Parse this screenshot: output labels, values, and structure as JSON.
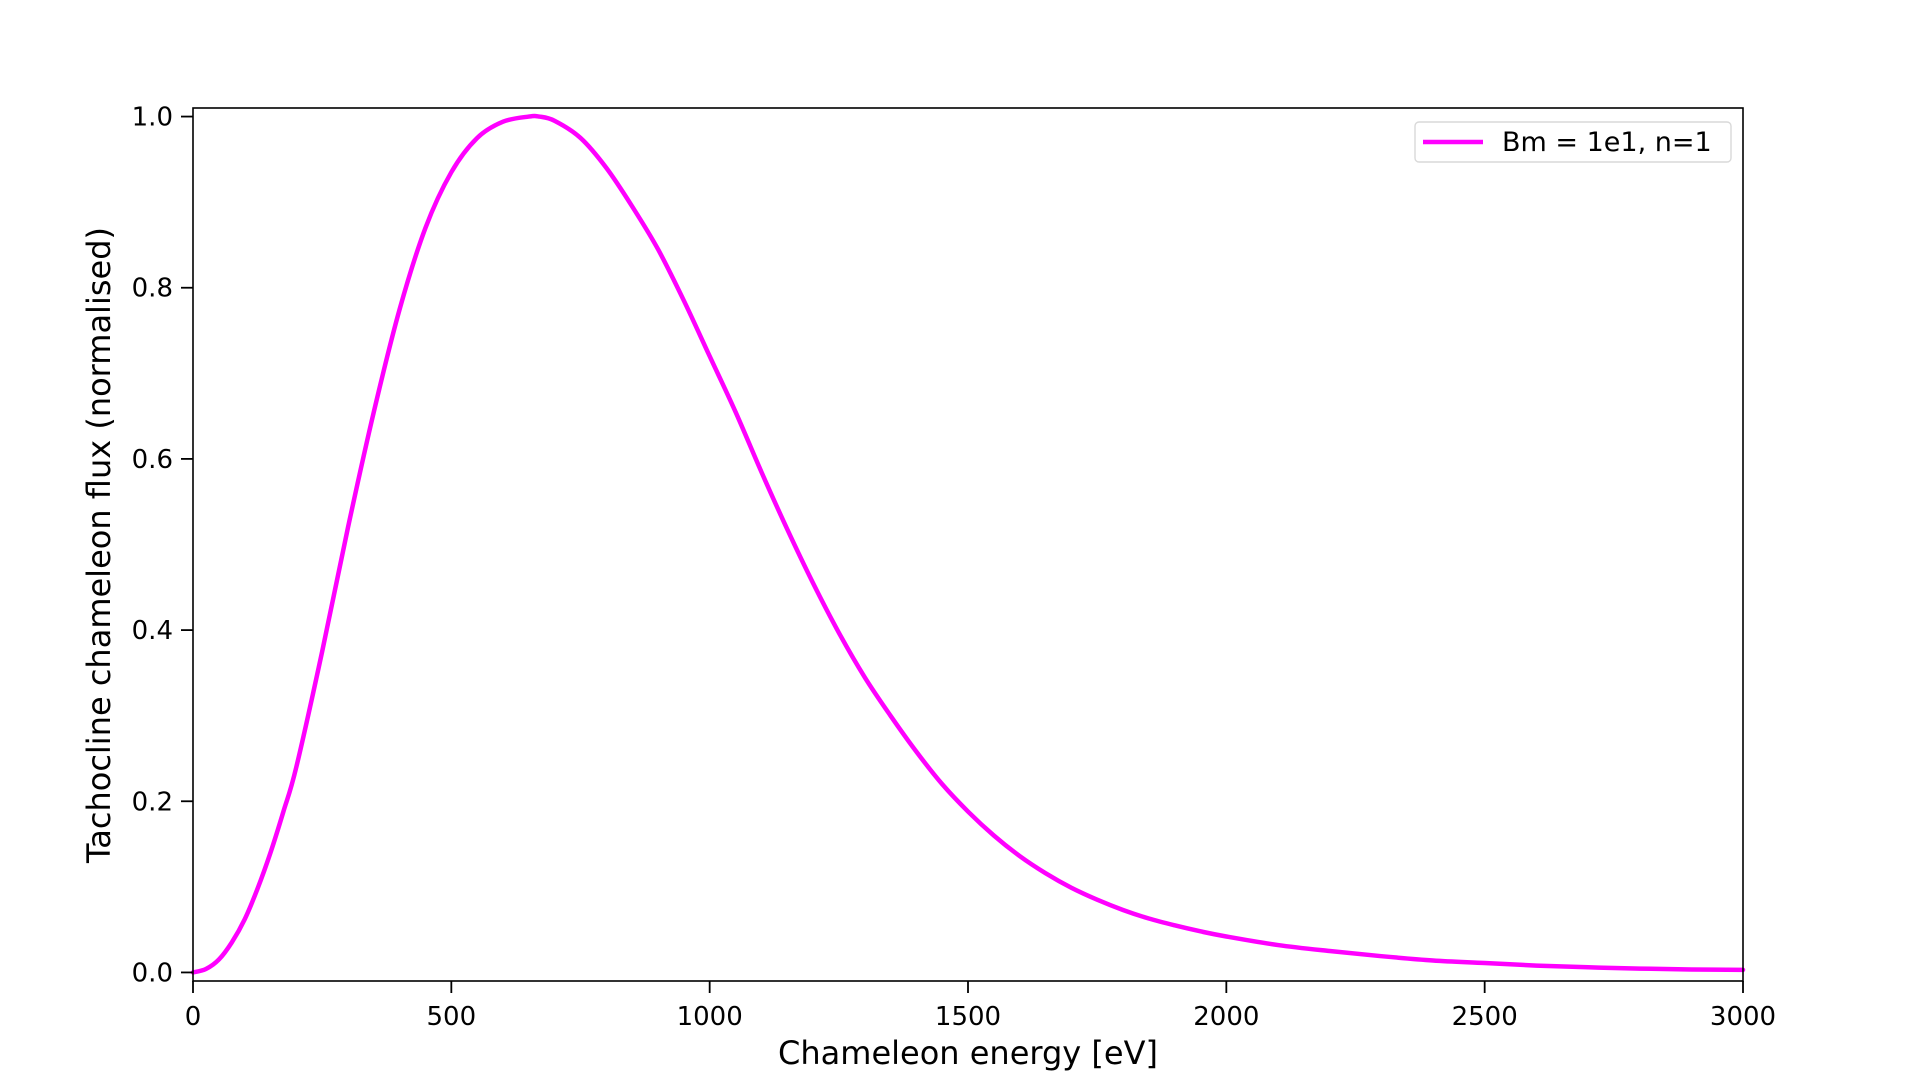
{
  "chart_data": {
    "type": "line",
    "title": "",
    "xlabel": "Chameleon energy [eV]",
    "ylabel": "Tachocline chameleon flux (normalised)",
    "xlim": [
      0,
      3000
    ],
    "ylim": [
      -0.01,
      1.01
    ],
    "grid": false,
    "legend_position": "top-right",
    "x_ticks": [
      {
        "value": 0,
        "label": "0"
      },
      {
        "value": 500,
        "label": "500"
      },
      {
        "value": 1000,
        "label": "1000"
      },
      {
        "value": 1500,
        "label": "1500"
      },
      {
        "value": 2000,
        "label": "2000"
      },
      {
        "value": 2500,
        "label": "2500"
      },
      {
        "value": 3000,
        "label": "3000"
      }
    ],
    "y_ticks": [
      {
        "value": 0.0,
        "label": "0.0"
      },
      {
        "value": 0.2,
        "label": "0.2"
      },
      {
        "value": 0.4,
        "label": "0.4"
      },
      {
        "value": 0.6,
        "label": "0.6"
      },
      {
        "value": 0.8,
        "label": "0.8"
      },
      {
        "value": 1.0,
        "label": "1.0"
      }
    ],
    "series": [
      {
        "name": "Bm = 1e1, n=1",
        "color": "#ff00ff",
        "x": [
          0,
          25,
          50,
          75,
          100,
          125,
          150,
          175,
          200,
          250,
          300,
          350,
          400,
          450,
          500,
          550,
          600,
          650,
          670,
          700,
          750,
          800,
          850,
          900,
          950,
          1000,
          1050,
          1100,
          1150,
          1200,
          1250,
          1300,
          1350,
          1400,
          1450,
          1500,
          1550,
          1600,
          1650,
          1700,
          1750,
          1800,
          1850,
          1900,
          1950,
          2000,
          2100,
          2200,
          2300,
          2400,
          2500,
          2600,
          2700,
          2800,
          2900,
          3000
        ],
        "y": [
          0.0,
          0.004,
          0.015,
          0.035,
          0.062,
          0.098,
          0.14,
          0.188,
          0.24,
          0.375,
          0.52,
          0.655,
          0.775,
          0.87,
          0.935,
          0.975,
          0.994,
          1.0,
          1.0,
          0.995,
          0.975,
          0.94,
          0.895,
          0.845,
          0.785,
          0.72,
          0.655,
          0.585,
          0.518,
          0.455,
          0.397,
          0.345,
          0.3,
          0.258,
          0.22,
          0.188,
          0.16,
          0.136,
          0.116,
          0.099,
          0.085,
          0.073,
          0.063,
          0.055,
          0.048,
          0.042,
          0.032,
          0.025,
          0.019,
          0.014,
          0.011,
          0.008,
          0.006,
          0.0045,
          0.0035,
          0.003
        ]
      }
    ]
  }
}
